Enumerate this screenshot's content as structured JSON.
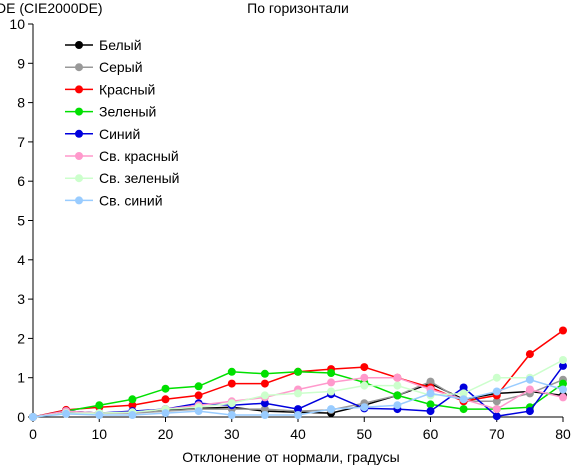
{
  "chart_data": {
    "type": "line",
    "title": "По горизонтали",
    "ylabel": "DE (CIE2000DE)",
    "xlabel": "Отклонение от нормали, градусы",
    "xlim": [
      0,
      80
    ],
    "ylim": [
      0,
      10
    ],
    "xticks": [
      0,
      10,
      20,
      30,
      40,
      50,
      60,
      70,
      80
    ],
    "yticks": [
      0,
      1,
      2,
      3,
      4,
      5,
      6,
      7,
      8,
      9,
      10
    ],
    "grid": "none",
    "legend_position": "top-left",
    "x": [
      0,
      5,
      10,
      15,
      20,
      25,
      30,
      35,
      40,
      45,
      50,
      55,
      60,
      65,
      70,
      75,
      80
    ],
    "series": [
      {
        "name": "Белый",
        "color": "#000000",
        "values": [
          0,
          0.15,
          0.1,
          0.12,
          0.18,
          0.22,
          0.25,
          0.15,
          0.12,
          0.1,
          0.3,
          0.55,
          0.85,
          0.45,
          0.6,
          0.65,
          0.55
        ]
      },
      {
        "name": "Серый",
        "color": "#999999",
        "values": [
          0,
          0.12,
          0.1,
          0.1,
          0.15,
          0.2,
          0.2,
          0.2,
          0.15,
          0.18,
          0.35,
          0.55,
          0.9,
          0.4,
          0.4,
          0.6,
          0.95
        ]
      },
      {
        "name": "Красный",
        "color": "#ff0000",
        "values": [
          0,
          0.18,
          0.25,
          0.3,
          0.45,
          0.55,
          0.85,
          0.85,
          1.15,
          1.22,
          1.27,
          1.0,
          0.75,
          0.4,
          0.55,
          1.6,
          2.2
        ]
      },
      {
        "name": "Зеленый",
        "color": "#00e000",
        "values": [
          0,
          0.15,
          0.3,
          0.45,
          0.72,
          0.78,
          1.15,
          1.1,
          1.15,
          1.12,
          0.88,
          0.55,
          0.32,
          0.2,
          0.2,
          0.25,
          0.85
        ]
      },
      {
        "name": "Синий",
        "color": "#0000dd",
        "values": [
          0,
          0.15,
          0.1,
          0.15,
          0.2,
          0.35,
          0.3,
          0.35,
          0.2,
          0.58,
          0.22,
          0.2,
          0.15,
          0.75,
          0.02,
          0.15,
          1.3
        ]
      },
      {
        "name": "Св. красный",
        "color": "#ff99cc",
        "values": [
          0,
          0.15,
          0.1,
          0.12,
          0.2,
          0.3,
          0.4,
          0.5,
          0.7,
          0.88,
          1.0,
          1.0,
          0.7,
          0.45,
          0.2,
          0.7,
          0.5
        ]
      },
      {
        "name": "Св. зеленый",
        "color": "#ccffcc",
        "values": [
          0,
          0.1,
          0.1,
          0.12,
          0.2,
          0.25,
          0.35,
          0.55,
          0.6,
          0.65,
          0.8,
          0.8,
          0.55,
          0.6,
          1.0,
          1.0,
          1.45
        ]
      },
      {
        "name": "Св. синий",
        "color": "#99ccff",
        "values": [
          0,
          0.08,
          0.05,
          0.05,
          0.1,
          0.15,
          0.05,
          0.05,
          0.05,
          0.2,
          0.25,
          0.3,
          0.6,
          0.45,
          0.65,
          0.95,
          0.7
        ]
      }
    ]
  }
}
